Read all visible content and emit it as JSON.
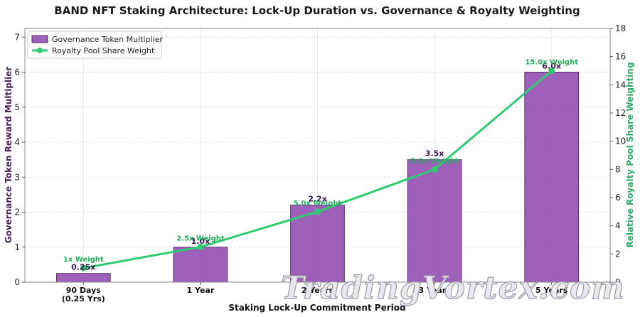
{
  "chart_data": {
    "type": "bar",
    "title": "BAND NFT Staking Architecture: Lock-Up Duration vs. Governance & Royalty Weighting",
    "xlabel": "Staking Lock-Up Commitment Period",
    "ylabel_left": "Governance Token Reward Multiplier",
    "ylabel_right": "Relative Royalty Pool Share Weighting",
    "categories": [
      [
        "90 Days",
        "(0.25 Yrs)"
      ],
      [
        "1 Year"
      ],
      [
        "2 Years"
      ],
      [
        "3 Years"
      ],
      [
        "5 Years"
      ]
    ],
    "ylim_left": [
      0,
      7.25
    ],
    "ylim_right": [
      0,
      18
    ],
    "yticks_left": [
      0,
      1,
      2,
      3,
      4,
      5,
      6,
      7
    ],
    "yticks_right": [
      0,
      2,
      4,
      6,
      8,
      10,
      12,
      14,
      16,
      18
    ],
    "grid": true,
    "legend_position": "top-left",
    "series": [
      {
        "name": "Governance Token Multiplier",
        "kind": "bar",
        "axis": "left",
        "color": "#8e44ad",
        "values": [
          0.25,
          1.0,
          2.2,
          3.5,
          6.0
        ],
        "labels": [
          "0.25x",
          "1.0x",
          "2.2x",
          "3.5x",
          "6.0x"
        ]
      },
      {
        "name": "Royalty Pool Share Weight",
        "kind": "line",
        "axis": "right",
        "color": "#2ecc71",
        "values": [
          1,
          2.5,
          5,
          8,
          15
        ],
        "labels": [
          "1x Weight",
          "2.5x Weight",
          "5.0x Weight",
          "8.0x Weight",
          "15.0x Weight"
        ]
      }
    ]
  },
  "watermark": "TradingVortex.com"
}
